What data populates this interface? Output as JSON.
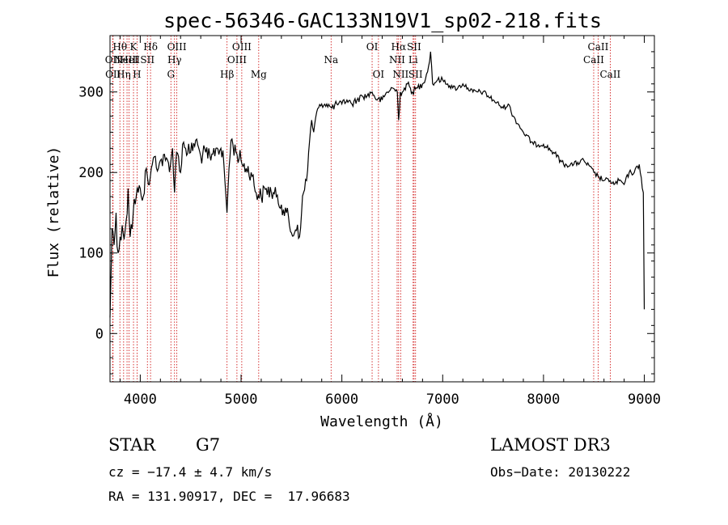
{
  "chart_data": {
    "type": "line",
    "title": "spec-56346-GAC133N19V1_sp02-218.fits",
    "xlabel": "Wavelength (Å)",
    "ylabel": "Flux (relative)",
    "xlim": [
      3700,
      9100
    ],
    "ylim": [
      -60,
      370
    ],
    "xticks": [
      4000,
      5000,
      6000,
      7000,
      8000,
      9000
    ],
    "yticks": [
      0,
      100,
      200,
      300
    ],
    "series": [
      {
        "name": "flux",
        "x": [
          3700,
          3720,
          3740,
          3760,
          3780,
          3800,
          3830,
          3860,
          3880,
          3900,
          3930,
          3960,
          3980,
          4000,
          4030,
          4060,
          4080,
          4100,
          4120,
          4150,
          4180,
          4200,
          4250,
          4300,
          4320,
          4340,
          4360,
          4380,
          4400,
          4420,
          4450,
          4500,
          4550,
          4600,
          4650,
          4700,
          4750,
          4800,
          4830,
          4860,
          4880,
          4900,
          4950,
          5000,
          5050,
          5100,
          5150,
          5200,
          5250,
          5300,
          5350,
          5400,
          5450,
          5500,
          5530,
          5560,
          5580,
          5600,
          5620,
          5650,
          5680,
          5700,
          5720,
          5750,
          5800,
          5850,
          5900,
          5950,
          6000,
          6050,
          6100,
          6150,
          6200,
          6250,
          6300,
          6350,
          6400,
          6450,
          6500,
          6550,
          6563,
          6580,
          6600,
          6650,
          6700,
          6750,
          6800,
          6850,
          6880,
          6900,
          6950,
          7000,
          7050,
          7100,
          7150,
          7200,
          7250,
          7300,
          7400,
          7500,
          7600,
          7650,
          7700,
          7750,
          7800,
          7900,
          8000,
          8100,
          8200,
          8300,
          8400,
          8500,
          8542,
          8600,
          8662,
          8700,
          8750,
          8800,
          8850,
          8900,
          8950,
          8990,
          9000
        ],
        "y": [
          20,
          130,
          110,
          150,
          100,
          120,
          125,
          140,
          180,
          120,
          150,
          170,
          175,
          180,
          170,
          205,
          185,
          195,
          210,
          220,
          205,
          215,
          215,
          210,
          230,
          175,
          225,
          220,
          200,
          235,
          230,
          225,
          240,
          220,
          225,
          215,
          230,
          230,
          210,
          150,
          205,
          240,
          225,
          215,
          205,
          200,
          175,
          170,
          180,
          175,
          170,
          160,
          150,
          125,
          125,
          135,
          120,
          150,
          175,
          190,
          240,
          265,
          250,
          275,
          285,
          285,
          280,
          285,
          285,
          290,
          285,
          290,
          295,
          295,
          300,
          290,
          290,
          300,
          305,
          300,
          265,
          300,
          300,
          310,
          300,
          305,
          310,
          325,
          350,
          310,
          315,
          315,
          310,
          305,
          305,
          310,
          305,
          300,
          300,
          290,
          280,
          285,
          270,
          260,
          250,
          235,
          235,
          225,
          210,
          210,
          215,
          200,
          195,
          190,
          190,
          185,
          190,
          185,
          200,
          200,
          210,
          175,
          30
        ]
      }
    ],
    "lines": [
      {
        "x": 3727,
        "label": "OII",
        "row": 2
      },
      {
        "x": 3730,
        "label": "OII",
        "row": 3
      },
      {
        "x": 3798,
        "label": "Hθ",
        "row": 1
      },
      {
        "x": 3835,
        "label": "Hη",
        "row": 3
      },
      {
        "x": 3869,
        "label": "NeIII",
        "row": 2
      },
      {
        "x": 3889,
        "label": "HeI",
        "row": 2
      },
      {
        "x": 3933,
        "label": "K",
        "row": 1
      },
      {
        "x": 3968,
        "label": "H",
        "row": 3
      },
      {
        "x": 4071,
        "label": "SII",
        "row": 2
      },
      {
        "x": 4102,
        "label": "Hδ",
        "row": 1
      },
      {
        "x": 4304,
        "label": "G",
        "row": 3
      },
      {
        "x": 4340,
        "label": "Hγ",
        "row": 2
      },
      {
        "x": 4363,
        "label": "OIII",
        "row": 1
      },
      {
        "x": 4861,
        "label": "Hβ",
        "row": 3
      },
      {
        "x": 4959,
        "label": "OIII",
        "row": 2
      },
      {
        "x": 5007,
        "label": "OIII",
        "row": 1
      },
      {
        "x": 5175,
        "label": "Mg",
        "row": 3
      },
      {
        "x": 5893,
        "label": "Na",
        "row": 2
      },
      {
        "x": 6300,
        "label": "OI",
        "row": 1
      },
      {
        "x": 6363,
        "label": "OI",
        "row": 3
      },
      {
        "x": 6548,
        "label": "NII",
        "row": 2
      },
      {
        "x": 6563,
        "label": "Hα",
        "row": 1
      },
      {
        "x": 6583,
        "label": "NII",
        "row": 3
      },
      {
        "x": 6707,
        "label": "Li",
        "row": 2
      },
      {
        "x": 6716,
        "label": "SII",
        "row": 1
      },
      {
        "x": 6731,
        "label": "SII",
        "row": 3
      },
      {
        "x": 8498,
        "label": "CaII",
        "row": 2
      },
      {
        "x": 8542,
        "label": "CaII",
        "row": 1
      },
      {
        "x": 8662,
        "label": "CaII",
        "row": 3
      }
    ]
  },
  "info": {
    "class_label": "STAR",
    "subclass": "G7",
    "cz": "cz = −17.4 ± 4.7 km/s",
    "coords": "RA = 131.90917, DEC =  17.96683",
    "survey": "LAMOST DR3",
    "obs_date": "Obs−Date: 20130222"
  },
  "colors": {
    "spectrum": "#000000",
    "line_markers": "#cc0000"
  }
}
